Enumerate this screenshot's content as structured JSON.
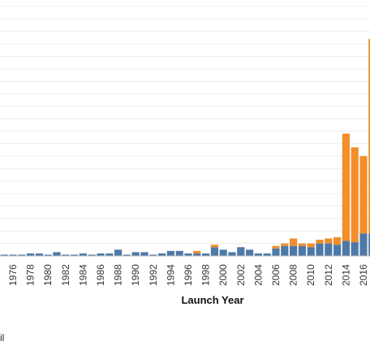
{
  "chart_data": {
    "type": "bar",
    "stacked": true,
    "xlabel": "Launch Year",
    "ylabel": "",
    "ylim": [
      0,
      100
    ],
    "grid": true,
    "categories": [
      "1975",
      "1976",
      "1977",
      "1978",
      "1979",
      "1980",
      "1981",
      "1982",
      "1983",
      "1984",
      "1985",
      "1986",
      "1987",
      "1988",
      "1989",
      "1990",
      "1991",
      "1992",
      "1993",
      "1994",
      "1995",
      "1996",
      "1997",
      "1998",
      "1999",
      "2000",
      "2001",
      "2002",
      "2003",
      "2004",
      "2005",
      "2006",
      "2007",
      "2008",
      "2009",
      "2010",
      "2011",
      "2012",
      "2013",
      "2014",
      "2015",
      "2016",
      "2017"
    ],
    "tick_labels": [
      "1976",
      "1978",
      "1980",
      "1982",
      "1984",
      "1986",
      "1988",
      "1990",
      "1992",
      "1994",
      "1996",
      "1998",
      "2000",
      "2002",
      "2004",
      "2006",
      "2008",
      "2010",
      "2012",
      "2014",
      "2016"
    ],
    "series": [
      {
        "color": "#4e79a7",
        "values": [
          0.5,
          0.5,
          0.5,
          1,
          1,
          0.5,
          1.5,
          0.5,
          0.5,
          1,
          0.5,
          1,
          1,
          2.5,
          0.5,
          1.5,
          1.5,
          0.5,
          1,
          2,
          2,
          1,
          1,
          1,
          3.5,
          2.5,
          1.5,
          3.5,
          2.5,
          1,
          1,
          3,
          4,
          4,
          4,
          3.5,
          5,
          5,
          4.5,
          6,
          5.5,
          9,
          9
        ]
      },
      {
        "color": "#f28e2b",
        "values": [
          0,
          0,
          0,
          0,
          0,
          0,
          0,
          0,
          0,
          0,
          0,
          0,
          0,
          0,
          0,
          0,
          0,
          0,
          0,
          0,
          0,
          0,
          1,
          0,
          1,
          0,
          0,
          0,
          0,
          0,
          0,
          1,
          1,
          3,
          1,
          1.5,
          1.5,
          2,
          3,
          43,
          38,
          31,
          78
        ]
      }
    ]
  },
  "footer": {
    "stray_text": "il"
  }
}
